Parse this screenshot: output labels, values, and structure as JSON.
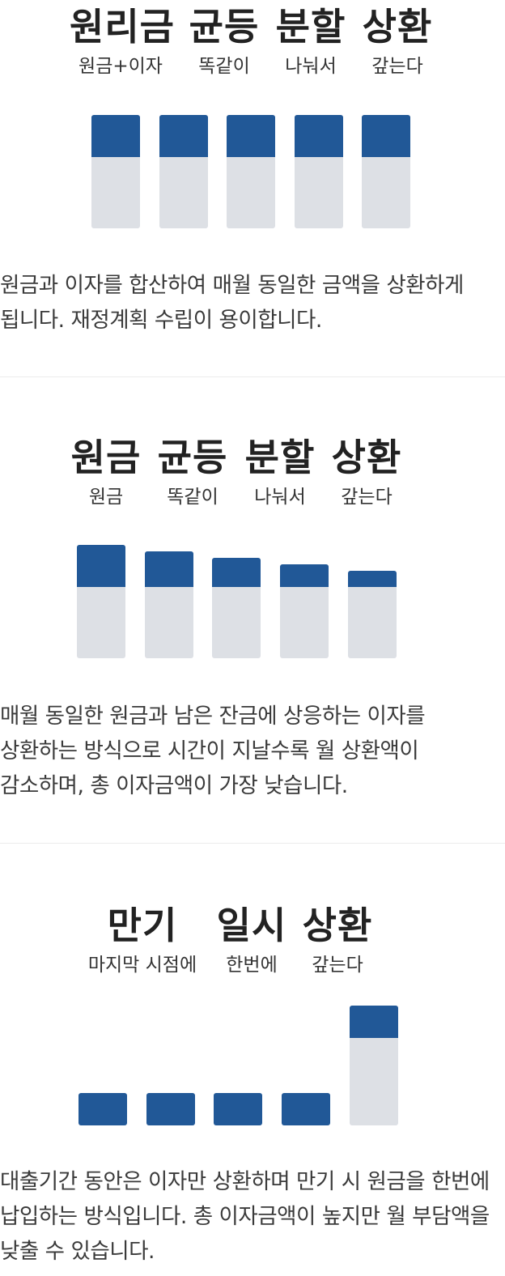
{
  "colors": {
    "fill": "#215897",
    "track": "#dde0e5",
    "divider": "#ececec"
  },
  "sections": [
    {
      "titles": [
        {
          "big": "원리금",
          "small": "원금+이자"
        },
        {
          "big": "균등",
          "small": "똑같이"
        },
        {
          "big": "분할",
          "small": "나눠서"
        },
        {
          "big": "상환",
          "small": "갚는다"
        }
      ],
      "bars_principal_share_percent": [
        36,
        36,
        36,
        36,
        36
      ],
      "description": "원금과 이자를 합산하여 매월 동일한 금액을 상환하게 됩니다. 재정계획 수립이 용이합니다."
    },
    {
      "titles": [
        {
          "big": "원금",
          "small": "원금"
        },
        {
          "big": "균등",
          "small": "똑같이"
        },
        {
          "big": "분할",
          "small": "나눠서"
        },
        {
          "big": "상환",
          "small": "갚는다"
        }
      ],
      "bars_principal_share_percent": [
        36,
        31,
        25,
        20,
        14
      ],
      "description": "매월 동일한 원금과 남은 잔금에 상응하는 이자를 상환하는 방식으로 시간이 지날수록 월 상환액이 감소하며, 총 이자금액이 가장 낮습니다."
    },
    {
      "titles": [
        {
          "big": "만기",
          "small": "마지막 시점에"
        },
        {
          "big": "일시",
          "small": "한번에"
        },
        {
          "big": "상환",
          "small": "갚는다"
        }
      ],
      "bars_principal_share_percent": [
        0,
        0,
        0,
        0,
        100
      ],
      "description": "대출기간 동안은 이자만 상환하며 만기 시 원금을 한번에 납입하는 방식입니다. 총 이자금액이 높지만 월 부담액을 낮출 수 있습니다."
    }
  ]
}
